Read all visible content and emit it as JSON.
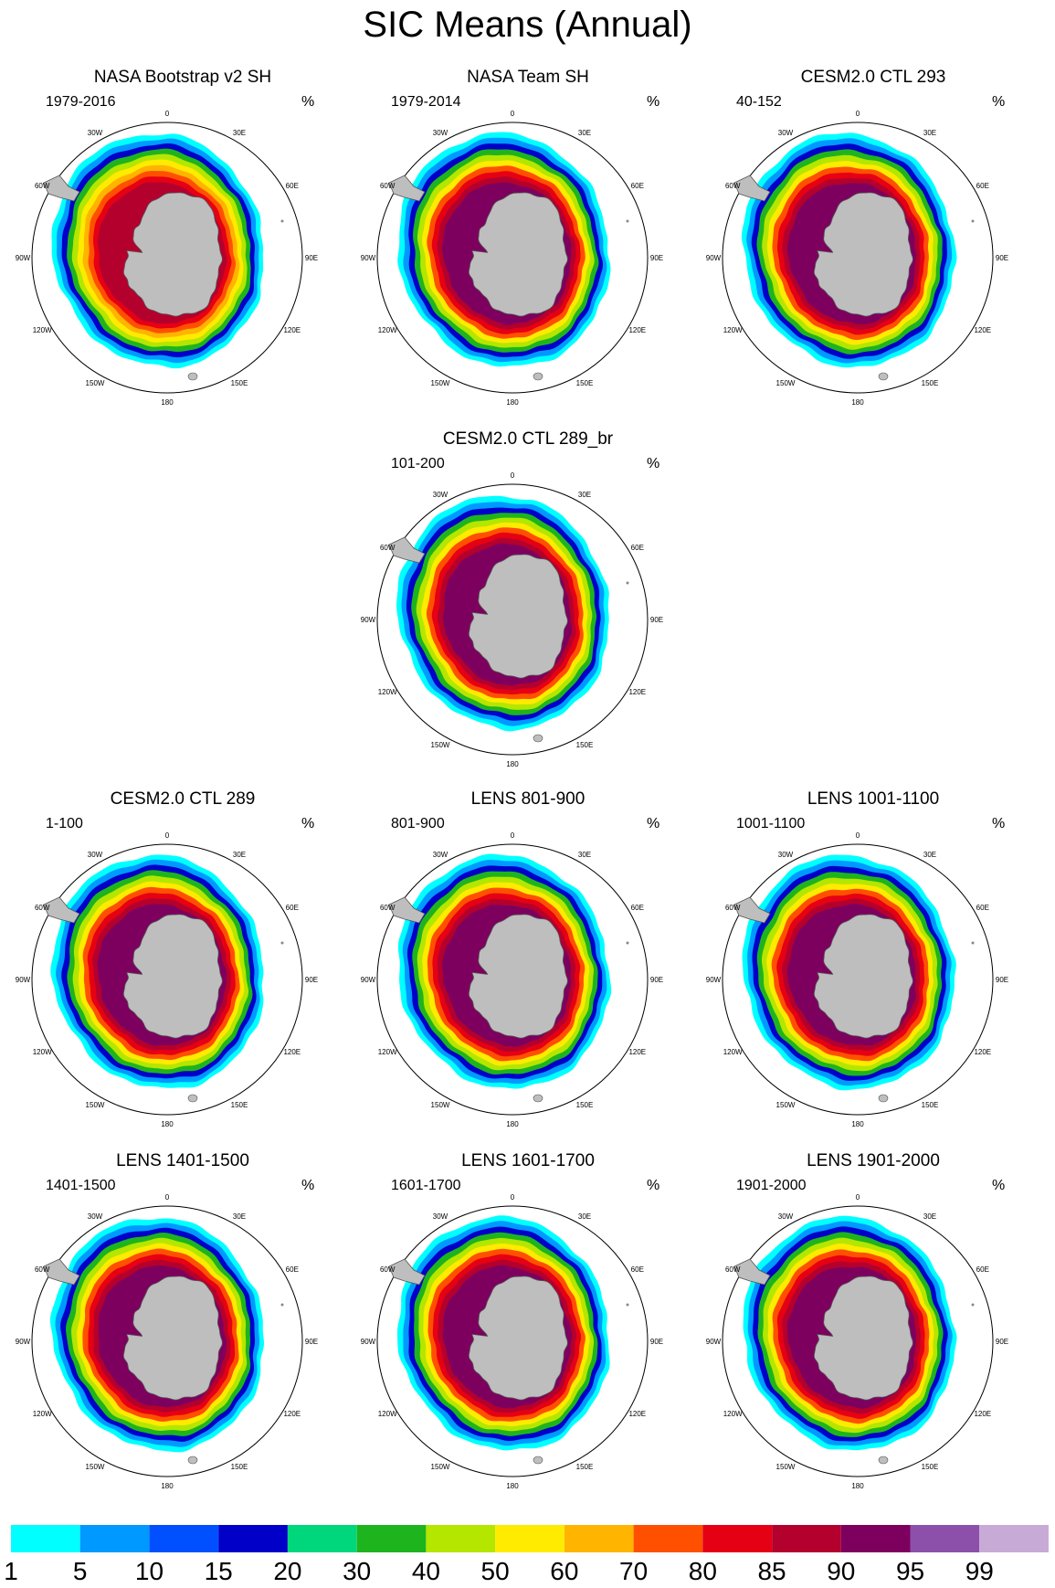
{
  "title": "SIC Means (Annual)",
  "panels": [
    {
      "title": "NASA Bootstrap v2 SH",
      "range": "1979-2016",
      "unit": "%"
    },
    {
      "title": "NASA Team SH",
      "range": "1979-2014",
      "unit": "%"
    },
    {
      "title": "CESM2.0 CTL 293",
      "range": "40-152",
      "unit": "%"
    },
    {
      "title": "CESM2.0 CTL 289_br",
      "range": "101-200",
      "unit": "%"
    },
    {
      "title": "CESM2.0 CTL 289",
      "range": "1-100",
      "unit": "%"
    },
    {
      "title": "LENS 801-900",
      "range": "801-900",
      "unit": "%"
    },
    {
      "title": "LENS 1001-1100",
      "range": "1001-1100",
      "unit": "%"
    },
    {
      "title": "LENS 1401-1500",
      "range": "1401-1500",
      "unit": "%"
    },
    {
      "title": "LENS 1601-1700",
      "range": "1601-1700",
      "unit": "%"
    },
    {
      "title": "LENS 1901-2000",
      "range": "1901-2000",
      "unit": "%"
    }
  ],
  "lon_labels": [
    "0",
    "30E",
    "60E",
    "90E",
    "120E",
    "150E",
    "180",
    "150W",
    "120W",
    "90W",
    "60W",
    "30W"
  ],
  "chart_data": {
    "type": "heatmap",
    "title": "SIC Means (Annual)",
    "projection": "south-polar-stereographic",
    "variable": "Sea ice concentration (%)",
    "colorbar": {
      "levels": [
        "1",
        "5",
        "10",
        "15",
        "20",
        "30",
        "40",
        "50",
        "60",
        "70",
        "80",
        "85",
        "90",
        "95",
        "99"
      ],
      "colors": [
        "#00ffff",
        "#0099ff",
        "#0050ff",
        "#0000c8",
        "#00d67c",
        "#1eb41e",
        "#b4e600",
        "#ffeb00",
        "#ffb400",
        "#ff5000",
        "#e60014",
        "#b4002d",
        "#7d005f",
        "#8c50aa",
        "#c8aad7"
      ]
    },
    "panel_bands": [
      [
        [
          0.2,
          0
        ],
        [
          0.23,
          1
        ],
        [
          0.26,
          3
        ],
        [
          0.3,
          5
        ],
        [
          0.35,
          6
        ],
        [
          0.4,
          7
        ],
        [
          0.45,
          8
        ],
        [
          0.5,
          9
        ],
        [
          0.55,
          10
        ],
        [
          0.6,
          11
        ]
      ],
      [
        [
          0.2,
          0
        ],
        [
          0.23,
          1
        ],
        [
          0.26,
          3
        ],
        [
          0.3,
          5
        ],
        [
          0.35,
          6
        ],
        [
          0.4,
          7
        ],
        [
          0.45,
          9
        ],
        [
          0.5,
          10
        ],
        [
          0.55,
          11
        ],
        [
          0.6,
          12
        ]
      ],
      [
        [
          0.2,
          0
        ],
        [
          0.23,
          1
        ],
        [
          0.26,
          3
        ],
        [
          0.3,
          5
        ],
        [
          0.35,
          6
        ],
        [
          0.4,
          7
        ],
        [
          0.45,
          9
        ],
        [
          0.5,
          10
        ],
        [
          0.55,
          11
        ],
        [
          0.6,
          12
        ]
      ],
      [
        [
          0.2,
          0
        ],
        [
          0.23,
          1
        ],
        [
          0.26,
          3
        ],
        [
          0.3,
          5
        ],
        [
          0.35,
          6
        ],
        [
          0.4,
          7
        ],
        [
          0.45,
          9
        ],
        [
          0.5,
          10
        ],
        [
          0.55,
          11
        ],
        [
          0.6,
          12
        ]
      ],
      [
        [
          0.2,
          0
        ],
        [
          0.23,
          1
        ],
        [
          0.26,
          3
        ],
        [
          0.3,
          5
        ],
        [
          0.35,
          6
        ],
        [
          0.4,
          7
        ],
        [
          0.45,
          9
        ],
        [
          0.5,
          10
        ],
        [
          0.55,
          11
        ],
        [
          0.6,
          12
        ]
      ],
      [
        [
          0.2,
          0
        ],
        [
          0.23,
          1
        ],
        [
          0.26,
          3
        ],
        [
          0.3,
          5
        ],
        [
          0.35,
          6
        ],
        [
          0.4,
          7
        ],
        [
          0.45,
          9
        ],
        [
          0.5,
          10
        ],
        [
          0.55,
          11
        ],
        [
          0.6,
          12
        ]
      ],
      [
        [
          0.2,
          0
        ],
        [
          0.23,
          1
        ],
        [
          0.26,
          3
        ],
        [
          0.3,
          5
        ],
        [
          0.35,
          6
        ],
        [
          0.4,
          7
        ],
        [
          0.45,
          9
        ],
        [
          0.5,
          10
        ],
        [
          0.55,
          11
        ],
        [
          0.6,
          12
        ]
      ],
      [
        [
          0.2,
          0
        ],
        [
          0.23,
          1
        ],
        [
          0.26,
          3
        ],
        [
          0.3,
          5
        ],
        [
          0.35,
          6
        ],
        [
          0.4,
          7
        ],
        [
          0.45,
          9
        ],
        [
          0.5,
          10
        ],
        [
          0.55,
          11
        ],
        [
          0.6,
          12
        ]
      ],
      [
        [
          0.2,
          0
        ],
        [
          0.23,
          1
        ],
        [
          0.26,
          3
        ],
        [
          0.3,
          5
        ],
        [
          0.35,
          6
        ],
        [
          0.4,
          7
        ],
        [
          0.45,
          9
        ],
        [
          0.5,
          10
        ],
        [
          0.55,
          11
        ],
        [
          0.6,
          12
        ]
      ],
      [
        [
          0.2,
          0
        ],
        [
          0.23,
          1
        ],
        [
          0.26,
          3
        ],
        [
          0.3,
          5
        ],
        [
          0.35,
          6
        ],
        [
          0.4,
          7
        ],
        [
          0.45,
          9
        ],
        [
          0.5,
          10
        ],
        [
          0.55,
          11
        ],
        [
          0.6,
          12
        ]
      ]
    ]
  }
}
